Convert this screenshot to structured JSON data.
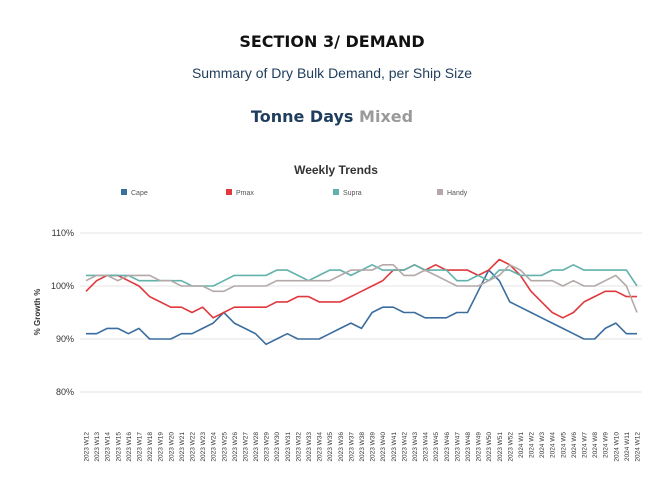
{
  "header": {
    "section_title": "SECTION 3/ DEMAND",
    "subtitle": "Summary of Dry Bulk Demand, per Ship Size",
    "heading_main": "Tonne Days",
    "heading_accent": "Mixed"
  },
  "chart_data": {
    "type": "line",
    "title": "Weekly Trends",
    "ylabel": "% Growth %",
    "xlabel": "",
    "ylim": [
      75,
      112
    ],
    "yticks": [
      80,
      90,
      100,
      110
    ],
    "ytick_labels": [
      "80%",
      "90%",
      "100%",
      "110%"
    ],
    "legend_position": "top",
    "grid": true,
    "x": [
      "2023 W12",
      "2023 W13",
      "2023 W14",
      "2023 W15",
      "2023 W16",
      "2023 W17",
      "2023 W18",
      "2023 W19",
      "2023 W20",
      "2023 W21",
      "2023 W22",
      "2023 W23",
      "2023 W24",
      "2023 W25",
      "2023 W26",
      "2023 W27",
      "2023 W28",
      "2023 W29",
      "2023 W30",
      "2023 W31",
      "2023 W32",
      "2023 W33",
      "2023 W34",
      "2023 W35",
      "2023 W36",
      "2023 W37",
      "2023 W38",
      "2023 W39",
      "2023 W40",
      "2023 W41",
      "2023 W42",
      "2023 W43",
      "2023 W44",
      "2023 W45",
      "2023 W46",
      "2023 W47",
      "2023 W48",
      "2023 W49",
      "2023 W50",
      "2023 W51",
      "2023 W52",
      "2024 W1",
      "2024 W2",
      "2024 W3",
      "2024 W4",
      "2024 W5",
      "2024 W6",
      "2024 W7",
      "2024 W8",
      "2024 W9",
      "2024 W10",
      "2024 W11",
      "2024 W12"
    ],
    "series": [
      {
        "name": "Cape",
        "color": "#3b6e9e",
        "values": [
          91,
          91,
          92,
          92,
          91,
          92,
          90,
          90,
          90,
          91,
          91,
          92,
          93,
          95,
          93,
          92,
          91,
          89,
          90,
          91,
          90,
          90,
          90,
          91,
          92,
          93,
          92,
          95,
          96,
          96,
          95,
          95,
          94,
          94,
          94,
          95,
          95,
          99,
          103,
          101,
          97,
          96,
          95,
          94,
          93,
          92,
          91,
          90,
          90,
          92,
          93,
          91,
          91
        ]
      },
      {
        "name": "Pmax",
        "color": "#e0393e",
        "values": [
          99,
          101,
          102,
          102,
          101,
          100,
          98,
          97,
          96,
          96,
          95,
          96,
          94,
          95,
          96,
          96,
          96,
          96,
          97,
          97,
          98,
          98,
          97,
          97,
          97,
          98,
          99,
          100,
          101,
          103,
          103,
          104,
          103,
          104,
          103,
          103,
          103,
          102,
          103,
          105,
          104,
          102,
          99,
          97,
          95,
          94,
          95,
          97,
          98,
          99,
          99,
          98,
          98
        ]
      },
      {
        "name": "Supra",
        "color": "#62b2ac",
        "values": [
          102,
          102,
          102,
          102,
          102,
          101,
          101,
          101,
          101,
          101,
          100,
          100,
          100,
          101,
          102,
          102,
          102,
          102,
          103,
          103,
          102,
          101,
          102,
          103,
          103,
          102,
          103,
          104,
          103,
          103,
          103,
          104,
          103,
          103,
          103,
          101,
          101,
          102,
          101,
          103,
          103,
          102,
          102,
          102,
          103,
          103,
          104,
          103,
          103,
          103,
          103,
          103,
          100
        ]
      },
      {
        "name": "Handy",
        "color": "#b3a9a8",
        "values": [
          101,
          102,
          102,
          101,
          102,
          102,
          102,
          101,
          101,
          100,
          100,
          100,
          99,
          99,
          100,
          100,
          100,
          100,
          101,
          101,
          101,
          101,
          101,
          101,
          102,
          103,
          103,
          103,
          104,
          104,
          102,
          102,
          103,
          102,
          101,
          100,
          100,
          100,
          101,
          102,
          104,
          103,
          101,
          101,
          101,
          100,
          101,
          100,
          100,
          101,
          102,
          100,
          95
        ]
      }
    ]
  }
}
